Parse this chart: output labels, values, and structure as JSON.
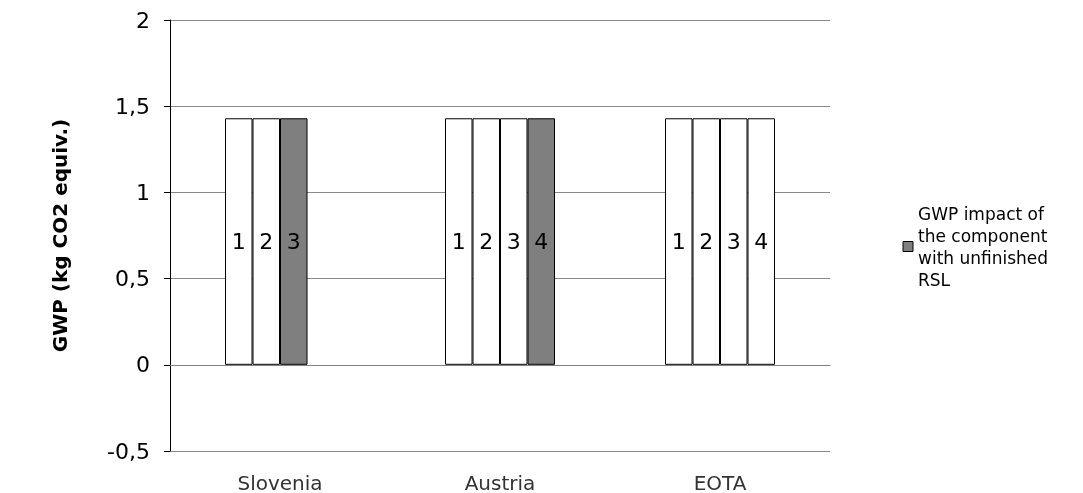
{
  "chart_data": {
    "type": "bar",
    "ylabel": "GWP (kg CO2 equiv.)",
    "categories": [
      "Slovenia",
      "Austria",
      "EOTA"
    ],
    "series": [
      {
        "name": "1",
        "color": "#ffffff",
        "colors": [
          "#ffffff",
          "#ffffff",
          "#ffffff"
        ],
        "values": [
          1.43,
          1.43,
          1.43
        ]
      },
      {
        "name": "2",
        "color": "#ffffff",
        "colors": [
          "#ffffff",
          "#ffffff",
          "#ffffff"
        ],
        "values": [
          1.43,
          1.43,
          1.43
        ]
      },
      {
        "name": "3",
        "color": "#ffffff",
        "colors": [
          "#7f7f7f",
          "#ffffff",
          "#ffffff"
        ],
        "values": [
          1.43,
          1.43,
          1.43
        ]
      },
      {
        "name": "4",
        "color": "#ffffff",
        "colors": [
          "#ffffff",
          "#7f7f7f",
          "#ffffff"
        ],
        "values": [
          null,
          1.43,
          1.43
        ]
      },
      {
        "name": "GWP impact of the component with unfinished RSL",
        "color": "#7f7f7f",
        "values": [
          null,
          null,
          null
        ]
      }
    ],
    "ylim": [
      -0.5,
      2
    ],
    "yticks": [
      {
        "value": -0.5,
        "label": "-0,5"
      },
      0,
      {
        "value": 0.5,
        "label": "0,5"
      },
      1,
      {
        "value": 1.5,
        "label": "1,5"
      },
      2
    ],
    "grid": "y",
    "legend": "right"
  }
}
